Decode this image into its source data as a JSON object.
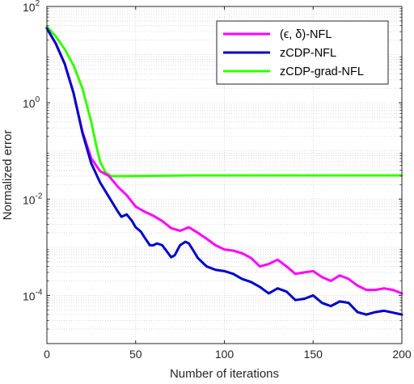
{
  "chart_data": {
    "type": "line",
    "xlabel": "Number of iterations",
    "ylabel": "Normalized error",
    "xlim": [
      0,
      200
    ],
    "ylim_log10": [
      -5,
      2
    ],
    "y_scale": "log",
    "grid": "major and minor, dotted",
    "legend_position": "top-right",
    "x_ticks": [
      "0",
      "50",
      "100",
      "150",
      "200"
    ],
    "y_ticks": [
      {
        "base": "10",
        "exp": "-4",
        "log10": -4
      },
      {
        "base": "10",
        "exp": "-2",
        "log10": -2
      },
      {
        "base": "10",
        "exp": "0",
        "log10": 0
      },
      {
        "base": "10",
        "exp": "2",
        "log10": 2
      }
    ],
    "series": [
      {
        "name": "(ϵ, δ)-NFL",
        "color": "#ff00ff",
        "points": [
          [
            0,
            35
          ],
          [
            5,
            17
          ],
          [
            10,
            6.5
          ],
          [
            15,
            1.6
          ],
          [
            20,
            0.25
          ],
          [
            25,
            0.07
          ],
          [
            30,
            0.038
          ],
          [
            35,
            0.03
          ],
          [
            40,
            0.018
          ],
          [
            45,
            0.012
          ],
          [
            50,
            0.007
          ],
          [
            55,
            0.0055
          ],
          [
            60,
            0.0045
          ],
          [
            65,
            0.0035
          ],
          [
            70,
            0.0025
          ],
          [
            75,
            0.0022
          ],
          [
            80,
            0.0026
          ],
          [
            85,
            0.002
          ],
          [
            90,
            0.0015
          ],
          [
            95,
            0.0011
          ],
          [
            100,
            0.0009
          ],
          [
            105,
            0.00085
          ],
          [
            110,
            0.00075
          ],
          [
            115,
            0.0006
          ],
          [
            120,
            0.0004
          ],
          [
            125,
            0.00045
          ],
          [
            130,
            0.00055
          ],
          [
            135,
            0.0004
          ],
          [
            140,
            0.00028
          ],
          [
            145,
            0.0003
          ],
          [
            150,
            0.00032
          ],
          [
            155,
            0.00024
          ],
          [
            160,
            0.0002
          ],
          [
            165,
            0.00026
          ],
          [
            170,
            0.00022
          ],
          [
            175,
            0.00016
          ],
          [
            180,
            0.00013
          ],
          [
            185,
            0.00013
          ],
          [
            190,
            0.00014
          ],
          [
            195,
            0.00013
          ],
          [
            200,
            0.00011
          ]
        ]
      },
      {
        "name": "zCDP-NFL",
        "color": "#0000cc",
        "points": [
          [
            0,
            35
          ],
          [
            5,
            17
          ],
          [
            10,
            6.5
          ],
          [
            15,
            1.6
          ],
          [
            20,
            0.24
          ],
          [
            25,
            0.055
          ],
          [
            30,
            0.022
          ],
          [
            35,
            0.011
          ],
          [
            40,
            0.0055
          ],
          [
            42,
            0.0043
          ],
          [
            45,
            0.0048
          ],
          [
            48,
            0.0035
          ],
          [
            50,
            0.0026
          ],
          [
            53,
            0.0021
          ],
          [
            55,
            0.0016
          ],
          [
            58,
            0.0011
          ],
          [
            60,
            0.0011
          ],
          [
            62,
            0.0012
          ],
          [
            65,
            0.0011
          ],
          [
            68,
            0.00078
          ],
          [
            70,
            0.00062
          ],
          [
            72,
            0.00068
          ],
          [
            75,
            0.0011
          ],
          [
            78,
            0.0013
          ],
          [
            80,
            0.0012
          ],
          [
            83,
            0.0008
          ],
          [
            85,
            0.0006
          ],
          [
            88,
            0.00047
          ],
          [
            90,
            0.0004
          ],
          [
            95,
            0.00034
          ],
          [
            100,
            0.00032
          ],
          [
            105,
            0.00028
          ],
          [
            110,
            0.00022
          ],
          [
            115,
            0.00019
          ],
          [
            120,
            0.00015
          ],
          [
            125,
            0.00011
          ],
          [
            130,
            0.00014
          ],
          [
            135,
            0.00012
          ],
          [
            140,
            8e-05
          ],
          [
            145,
            8.5e-05
          ],
          [
            150,
            0.0001
          ],
          [
            155,
            7e-05
          ],
          [
            160,
            6e-05
          ],
          [
            165,
            7.5e-05
          ],
          [
            170,
            7e-05
          ],
          [
            175,
            4.5e-05
          ],
          [
            180,
            4e-05
          ],
          [
            185,
            4.5e-05
          ],
          [
            190,
            4.8e-05
          ],
          [
            195,
            4.4e-05
          ],
          [
            200,
            4e-05
          ]
        ]
      },
      {
        "name": "zCDP-grad-NFL",
        "color": "#33ff00",
        "points": [
          [
            0,
            38
          ],
          [
            5,
            24
          ],
          [
            10,
            13
          ],
          [
            15,
            6
          ],
          [
            20,
            2
          ],
          [
            25,
            0.4
          ],
          [
            28,
            0.12
          ],
          [
            30,
            0.06
          ],
          [
            33,
            0.036
          ],
          [
            36,
            0.03
          ],
          [
            40,
            0.03
          ],
          [
            60,
            0.0305
          ],
          [
            80,
            0.031
          ],
          [
            100,
            0.031
          ],
          [
            120,
            0.031
          ],
          [
            140,
            0.031
          ],
          [
            160,
            0.031
          ],
          [
            180,
            0.031
          ],
          [
            200,
            0.031
          ]
        ]
      }
    ]
  }
}
